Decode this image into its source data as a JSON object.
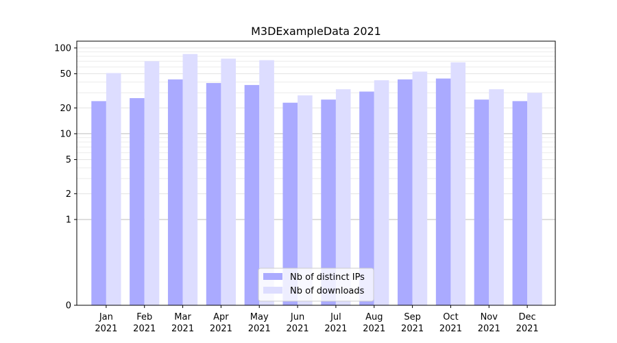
{
  "chart_data": {
    "type": "bar",
    "title": "M3DExampleData 2021",
    "xlabel": "",
    "ylabel": "",
    "yscale": "symlog",
    "ylim": [
      0,
      120
    ],
    "yticks": [
      0,
      1,
      2,
      5,
      10,
      20,
      50,
      100
    ],
    "grid": "horizontal",
    "legend_position": "bottom-center",
    "categories": [
      "Jan\n2021",
      "Feb\n2021",
      "Mar\n2021",
      "Apr\n2021",
      "May\n2021",
      "Jun\n2021",
      "Jul\n2021",
      "Aug\n2021",
      "Sep\n2021",
      "Oct\n2021",
      "Nov\n2021",
      "Dec\n2021"
    ],
    "category_lines": [
      [
        "Jan",
        "2021"
      ],
      [
        "Feb",
        "2021"
      ],
      [
        "Mar",
        "2021"
      ],
      [
        "Apr",
        "2021"
      ],
      [
        "May",
        "2021"
      ],
      [
        "Jun",
        "2021"
      ],
      [
        "Jul",
        "2021"
      ],
      [
        "Aug",
        "2021"
      ],
      [
        "Sep",
        "2021"
      ],
      [
        "Oct",
        "2021"
      ],
      [
        "Nov",
        "2021"
      ],
      [
        "Dec",
        "2021"
      ]
    ],
    "series": [
      {
        "name": "Nb of distinct IPs",
        "color": "#aaaaff",
        "values": [
          24,
          26,
          43,
          39,
          37,
          23,
          25,
          31,
          43,
          44,
          25,
          24
        ]
      },
      {
        "name": "Nb of downloads",
        "color": "#ddddff",
        "values": [
          51,
          70,
          85,
          75,
          72,
          28,
          33,
          42,
          53,
          68,
          33,
          30
        ]
      }
    ]
  }
}
